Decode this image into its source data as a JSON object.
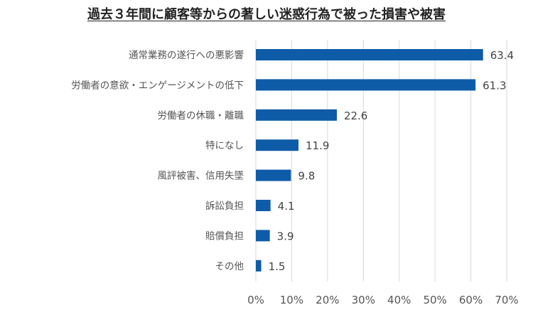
{
  "chart_data": {
    "type": "bar",
    "orientation": "horizontal",
    "title": "過去３年間に顧客等からの著しい迷惑行為で被った損害や被害",
    "categories": [
      "通常業務の遂行への悪影響",
      "労働者の意欲・エンゲージメントの低下",
      "労働者の休職・離職",
      "特になし",
      "風評被害、信用失墜",
      "訴訟負担",
      "賠償負担",
      "その他"
    ],
    "values": [
      63.4,
      61.3,
      22.6,
      11.9,
      9.8,
      4.1,
      3.9,
      1.5
    ],
    "data_labels": [
      "63.4",
      "61.3",
      "22.6",
      "11.9",
      "9.8",
      "4.1",
      "3.9",
      "1.5"
    ],
    "xlim": [
      0,
      70
    ],
    "xticks": [
      "0%",
      "10%",
      "20%",
      "30%",
      "40%",
      "50%",
      "60%",
      "70%"
    ],
    "grid": true,
    "legend": "none",
    "bar_color": "#0e5ca8"
  }
}
